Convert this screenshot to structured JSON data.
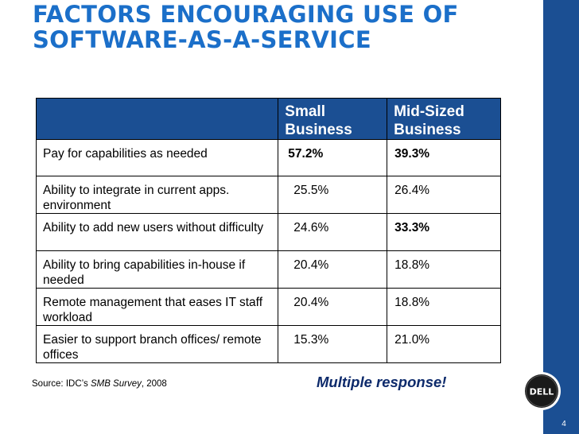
{
  "slide": {
    "title_line1": "FACTORS ENCOURAGING USE OF",
    "title_line2": "SOFTWARE-AS-A-SERVICE",
    "page_number": "4",
    "logo_text": "DELL"
  },
  "table": {
    "headers": [
      "",
      "Small Business",
      "Mid-Sized Business"
    ],
    "header_lines": {
      "small": [
        "Small",
        "Business"
      ],
      "mid": [
        "Mid-Sized",
        "Business"
      ]
    },
    "rows": [
      {
        "factor": "Pay for capabilities as needed",
        "small": "57.2%",
        "mid": "39.3%",
        "small_bold": true,
        "mid_bold": true
      },
      {
        "factor": "Ability to integrate in current apps. environment",
        "small": "25.5%",
        "mid": "26.4%",
        "small_bold": false,
        "mid_bold": false
      },
      {
        "factor": "Ability to add new users without difficulty",
        "small": "24.6%",
        "mid": "33.3%",
        "small_bold": false,
        "mid_bold": true
      },
      {
        "factor": "Ability to bring capabilities in-house if needed",
        "small": "20.4%",
        "mid": "18.8%",
        "small_bold": false,
        "mid_bold": false
      },
      {
        "factor": "Remote management that eases IT staff workload",
        "small": "20.4%",
        "mid": "18.8%",
        "small_bold": false,
        "mid_bold": false
      },
      {
        "factor": "Easier to support branch offices/ remote offices",
        "small": "15.3%",
        "mid": "21.0%",
        "small_bold": false,
        "mid_bold": false
      }
    ]
  },
  "footer": {
    "source_prefix": "Source: IDC’s ",
    "source_title": "SMB Survey",
    "source_suffix": ", 2008",
    "note": "Multiple response!"
  },
  "colors": {
    "title_blue": "#1b6fc9",
    "header_blue": "#1b4f93",
    "sidebar_blue": "#1b4f93",
    "note_navy": "#0d2a6b"
  }
}
